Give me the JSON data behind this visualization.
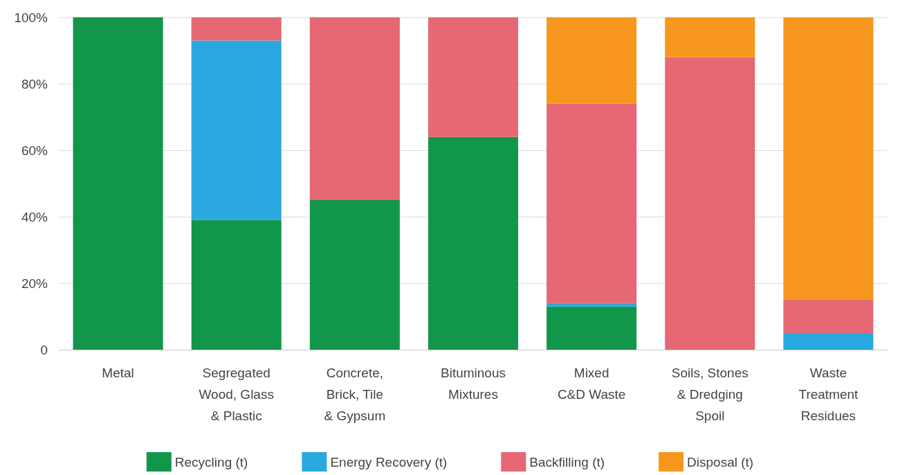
{
  "chart_data": {
    "type": "bar",
    "stacked": true,
    "categories": [
      "Metal",
      "Segregated\nWood, Glass\n& Plastic",
      "Concrete,\nBrick, Tile\n& Gypsum",
      "Bituminous\nMixtures",
      "Mixed\nC&D Waste",
      "Soils, Stones\n& Dredging\nSpoil",
      "Waste\nTreatment\nResidues"
    ],
    "series": [
      {
        "name": "Recycling (t)",
        "color": "#12964a",
        "values": [
          100,
          39,
          45,
          64,
          13,
          0,
          0
        ]
      },
      {
        "name": "Energy Recovery (t)",
        "color": "#29a8e0",
        "values": [
          0,
          54,
          0,
          0,
          1,
          0,
          5
        ]
      },
      {
        "name": "Backfilling (t)",
        "color": "#e56874",
        "values": [
          0,
          7,
          55,
          36,
          60,
          88,
          10
        ]
      },
      {
        "name": "Disposal (t)",
        "color": "#f7971e",
        "values": [
          0,
          0,
          0,
          0,
          26,
          12,
          85
        ]
      }
    ],
    "ylim": [
      0,
      100
    ],
    "yticks": [
      0,
      {
        "value": 20,
        "label": "20%"
      },
      {
        "value": 40,
        "label": "40%"
      },
      {
        "value": 60,
        "label": "60%"
      },
      {
        "value": 80,
        "label": "80%"
      },
      {
        "value": 100,
        "label": "100%"
      }
    ],
    "grid": "y",
    "legend": "bottom"
  }
}
